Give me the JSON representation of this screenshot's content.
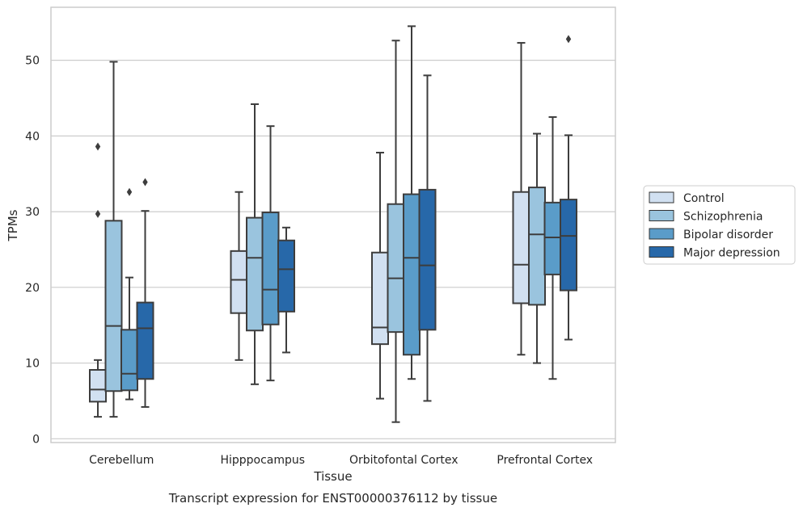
{
  "chart_data": {
    "type": "box",
    "title": "",
    "caption": "Transcript expression for ENST00000376112 by tissue",
    "xlabel": "Tissue",
    "ylabel": "TPMs",
    "ylim": [
      -0.5,
      57
    ],
    "yticks": [
      0,
      10,
      20,
      30,
      40,
      50
    ],
    "grid": "horizontal",
    "legend_position": "right",
    "categories": [
      "Cerebellum",
      "Hipppocampus",
      "Orbitofontal Cortex",
      "Prefrontal Cortex"
    ],
    "series": [
      {
        "name": "Control",
        "color": "#d1e0f1",
        "boxes": [
          {
            "whislo": 2.9,
            "q1": 4.9,
            "med": 6.5,
            "q3": 9.1,
            "whishi": 10.4,
            "fliers": [
              29.7,
              38.6
            ]
          },
          {
            "whislo": 10.4,
            "q1": 16.6,
            "med": 21.0,
            "q3": 24.8,
            "whishi": 32.6,
            "fliers": []
          },
          {
            "whislo": 5.3,
            "q1": 12.5,
            "med": 14.7,
            "q3": 24.6,
            "whishi": 37.8,
            "fliers": []
          },
          {
            "whislo": 11.1,
            "q1": 17.9,
            "med": 23.0,
            "q3": 32.6,
            "whishi": 52.3,
            "fliers": []
          }
        ]
      },
      {
        "name": "Schizophrenia",
        "color": "#9ac4de",
        "boxes": [
          {
            "whislo": 2.9,
            "q1": 6.3,
            "med": 14.9,
            "q3": 28.8,
            "whishi": 49.8,
            "fliers": []
          },
          {
            "whislo": 7.2,
            "q1": 14.3,
            "med": 23.9,
            "q3": 29.2,
            "whishi": 44.2,
            "fliers": []
          },
          {
            "whislo": 2.2,
            "q1": 14.1,
            "med": 21.2,
            "q3": 31.0,
            "whishi": 52.6,
            "fliers": []
          },
          {
            "whislo": 10.0,
            "q1": 17.7,
            "med": 27.0,
            "q3": 33.2,
            "whishi": 40.3,
            "fliers": []
          }
        ]
      },
      {
        "name": "Bipolar disorder",
        "color": "#5a9cc9",
        "boxes": [
          {
            "whislo": 5.2,
            "q1": 6.4,
            "med": 8.6,
            "q3": 14.4,
            "whishi": 21.3,
            "fliers": [
              32.6
            ]
          },
          {
            "whislo": 7.7,
            "q1": 15.1,
            "med": 19.7,
            "q3": 29.9,
            "whishi": 41.3,
            "fliers": []
          },
          {
            "whislo": 7.9,
            "q1": 11.1,
            "med": 23.9,
            "q3": 32.3,
            "whishi": 54.5,
            "fliers": []
          },
          {
            "whislo": 7.9,
            "q1": 21.7,
            "med": 26.6,
            "q3": 31.2,
            "whishi": 42.5,
            "fliers": []
          }
        ]
      },
      {
        "name": "Major depression",
        "color": "#2768a9",
        "boxes": [
          {
            "whislo": 4.2,
            "q1": 7.9,
            "med": 14.6,
            "q3": 18.0,
            "whishi": 30.1,
            "fliers": [
              33.9
            ]
          },
          {
            "whislo": 11.4,
            "q1": 16.8,
            "med": 22.4,
            "q3": 26.2,
            "whishi": 27.9,
            "fliers": []
          },
          {
            "whislo": 5.0,
            "q1": 14.4,
            "med": 22.9,
            "q3": 32.9,
            "whishi": 48.0,
            "fliers": []
          },
          {
            "whislo": 13.1,
            "q1": 19.6,
            "med": 26.8,
            "q3": 31.6,
            "whishi": 40.1,
            "fliers": [
              52.8
            ]
          }
        ]
      }
    ]
  }
}
